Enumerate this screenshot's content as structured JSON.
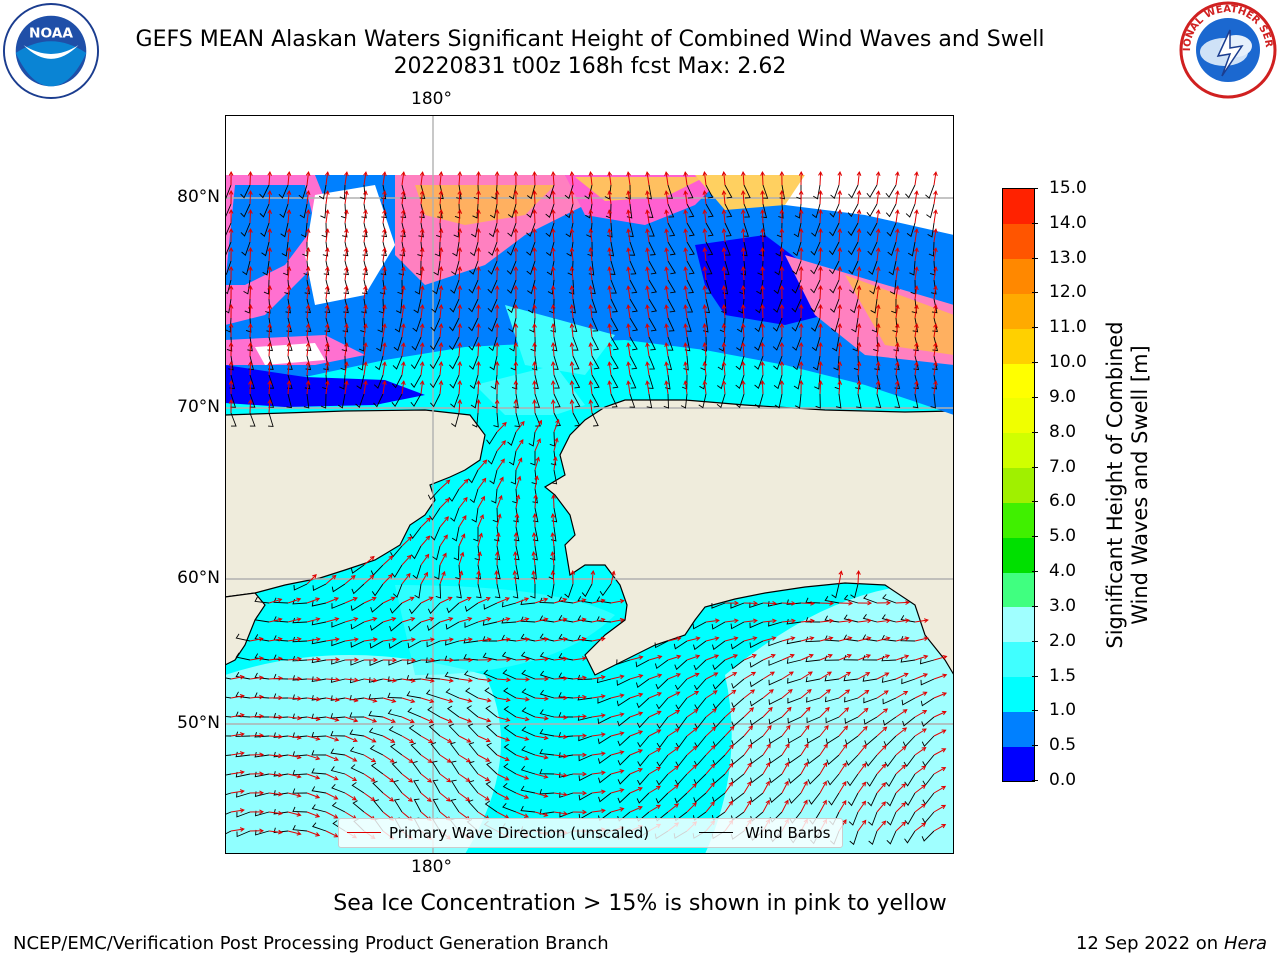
{
  "header": {
    "title_line1": "GEFS MEAN Alaskan Waters Significant Height of Combined Wind Waves and Swell",
    "title_line2": "20220831 t00z 168h fcst   Max: 2.62"
  },
  "logos": {
    "left": {
      "icon": "noaa-logo-icon",
      "text": "NOAA"
    },
    "right": {
      "icon": "nws-logo-icon",
      "text": "NATIONAL WEATHER SERVICE"
    }
  },
  "map": {
    "lon_label_top": "180°",
    "lon_label_bottom": "180°",
    "lat_labels": [
      "80°N",
      "70°N",
      "60°N",
      "50°N"
    ],
    "land_color": "#efecdc",
    "ocean_base_color": "#00ffff"
  },
  "legend": {
    "wave_direction_label": "Primary Wave Direction (unscaled)",
    "wave_direction_color": "#e00000",
    "wind_barbs_label": "Wind Barbs",
    "wind_barbs_color": "#000000"
  },
  "colorbar": {
    "label_line1": "Significant Height of Combined",
    "label_line2": "Wind Waves and Swell [m]",
    "ticks": [
      "0.0",
      "0.5",
      "1.0",
      "1.5",
      "2.0",
      "3.0",
      "4.0",
      "5.0",
      "6.0",
      "7.0",
      "8.0",
      "9.0",
      "10.0",
      "11.0",
      "12.0",
      "13.0",
      "14.0",
      "15.0"
    ],
    "colors": [
      "#0000ff",
      "#0080ff",
      "#00ffff",
      "#40ffff",
      "#a0ffff",
      "#40ff80",
      "#00e000",
      "#40f000",
      "#a0f000",
      "#d0ff00",
      "#f0ff00",
      "#ffff00",
      "#ffd000",
      "#ffaa00",
      "#ff8800",
      "#ff5500",
      "#ff2200"
    ]
  },
  "footer": {
    "ice_note": "Sea Ice Concentration > 15% is shown in pink to yellow",
    "credit": "NCEP/EMC/Verification Post Processing Product Generation Branch",
    "date": "12 Sep 2022 on",
    "host": "Hera"
  }
}
